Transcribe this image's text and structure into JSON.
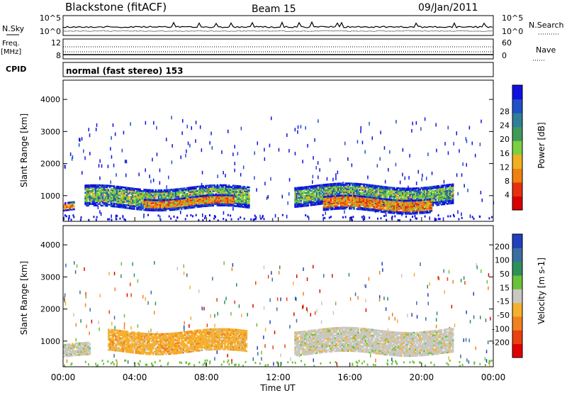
{
  "header": {
    "station": "Blackstone (fitACF)",
    "beam": "Beam 15",
    "date": "09/Jan/2011"
  },
  "summary": {
    "nsky_label": "N.Sky",
    "nsearch_label": "N.Search",
    "freq_label": "Freq.",
    "freq_unit": "[MHz]",
    "nave_label": "Nave",
    "cpid_label": "CPID",
    "count_ticks_left": [
      "10^5",
      "10^0"
    ],
    "count_ticks_right": [
      "10^5",
      "10^0"
    ],
    "freq_ticks_left": [
      "12",
      "8"
    ],
    "nave_ticks_right": [
      "60",
      "0"
    ],
    "cpid_text": "normal (fast stereo) 153"
  },
  "time_axis": {
    "ticks": [
      "00:00",
      "04:00",
      "08:00",
      "12:00",
      "16:00",
      "20:00",
      "00:00"
    ],
    "label": "Time UT"
  },
  "chart_data": [
    {
      "type": "heatmap",
      "name": "power",
      "ylabel": "Slant Range [km]",
      "yticks": [
        "1000",
        "2000",
        "3000",
        "4000"
      ],
      "ylim": [
        200,
        4600
      ],
      "xlim_hours": [
        0,
        24
      ],
      "colorbar": {
        "label": "Power [dB]",
        "ticks": [
          "4",
          "8",
          "12",
          "16",
          "20",
          "24",
          "28"
        ],
        "colors": [
          "#1010e0",
          "#2050c8",
          "#2f7f9a",
          "#3f9a5a",
          "#7cd040",
          "#f0b020",
          "#f08010",
          "#e83010",
          "#d80000"
        ]
      },
      "bands": [
        {
          "start_h": 0.0,
          "end_h": 0.6,
          "range_km": [
            520,
            760
          ],
          "level": "high"
        },
        {
          "start_h": 1.2,
          "end_h": 10.4,
          "range_km": [
            600,
            1250
          ],
          "level": "medium"
        },
        {
          "start_h": 4.5,
          "end_h": 9.5,
          "range_km": [
            650,
            950
          ],
          "level": "high"
        },
        {
          "start_h": 12.9,
          "end_h": 21.7,
          "range_km": [
            700,
            1320
          ],
          "level": "medium"
        },
        {
          "start_h": 14.5,
          "end_h": 20.5,
          "range_km": [
            500,
            950
          ],
          "level": "high"
        }
      ]
    },
    {
      "type": "heatmap",
      "name": "velocity",
      "ylabel": "Slant Range [km]",
      "yticks": [
        "1000",
        "2000",
        "3000",
        "4000"
      ],
      "ylim": [
        200,
        4600
      ],
      "xlim_hours": [
        0,
        24
      ],
      "colorbar": {
        "label": "Velocity [m s-1]",
        "ticks": [
          "200",
          "100",
          "50",
          "15",
          "-15",
          "-50",
          "-100",
          "-200"
        ],
        "colors": [
          "#2040c0",
          "#3a6ea0",
          "#2f8f5a",
          "#6ac23a",
          "#c8c8c0",
          "#f5b030",
          "#f08020",
          "#ea4010",
          "#e00000"
        ]
      },
      "bands": [
        {
          "start_h": 0.0,
          "end_h": 1.5,
          "range_km": [
            500,
            900
          ],
          "value": "-15 to 15"
        },
        {
          "start_h": 2.5,
          "end_h": 10.2,
          "range_km": [
            650,
            1300
          ],
          "value": "-50 to -15"
        },
        {
          "start_h": 12.9,
          "end_h": 21.7,
          "range_km": [
            600,
            1350
          ],
          "value": "-15 to 15"
        }
      ]
    }
  ]
}
